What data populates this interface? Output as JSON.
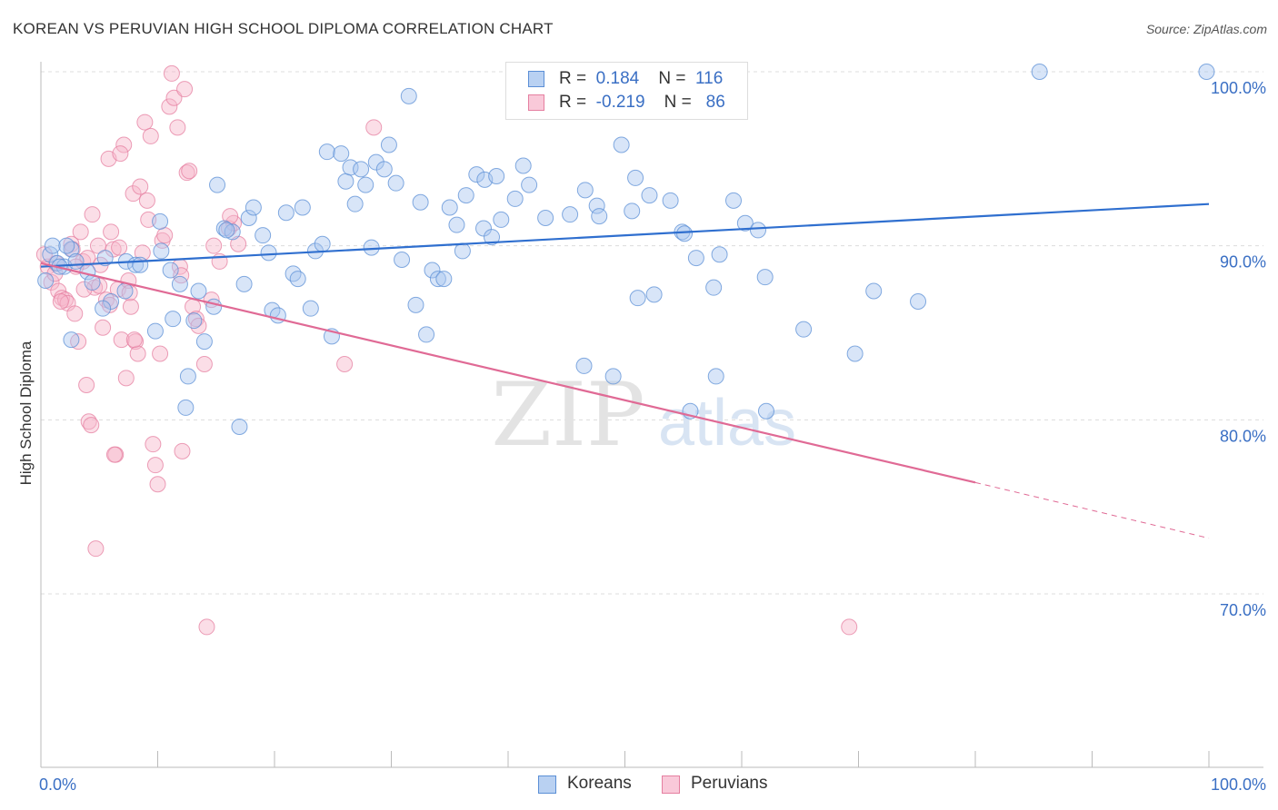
{
  "header": {
    "title": "KOREAN VS PERUVIAN HIGH SCHOOL DIPLOMA CORRELATION CHART",
    "source": "Source: ZipAtlas.com"
  },
  "legend": {
    "koreans": {
      "r_label": "R =",
      "r_value": "0.184",
      "n_label": "N =",
      "n_value": "116"
    },
    "peruvians": {
      "r_label": "R =",
      "r_value": "-0.219",
      "n_label": "N =",
      "n_value": "86"
    }
  },
  "bottom_legend": {
    "koreans": "Koreans",
    "peruvians": "Peruvians"
  },
  "watermark": {
    "zip": "ZIP",
    "atlas": "atlas"
  },
  "colors": {
    "korean_fill": "#a9c6ef",
    "korean_stroke": "#5b8fd6",
    "korean_line": "#2f6fcf",
    "peruvian_fill": "#f6b5ca",
    "peruvian_stroke": "#e57fa0",
    "peruvian_line": "#e06a95",
    "tick_label": "#3a6fc4",
    "grid": "#dcdcdc"
  },
  "chart_data": {
    "type": "scatter",
    "title": "KOREAN VS PERUVIAN HIGH SCHOOL DIPLOMA CORRELATION CHART",
    "xlabel": "",
    "ylabel": "High School Diploma",
    "xlim": [
      0,
      100
    ],
    "ylim": [
      60.5,
      101
    ],
    "x_tick_labels": [
      "0.0%",
      "100.0%"
    ],
    "y_ticks": [
      70,
      80,
      90,
      100
    ],
    "y_tick_labels": [
      "70.0%",
      "80.0%",
      "90.0%",
      "100.0%"
    ],
    "grid": true,
    "legend_position": "top-center",
    "series": [
      {
        "name": "Koreans",
        "r": 0.184,
        "n": 116,
        "trend": {
          "x": [
            0,
            100
          ],
          "y": [
            88.8,
            92.4
          ]
        },
        "points": [
          [
            0.8,
            89.5
          ],
          [
            1.0,
            90.0
          ],
          [
            1.4,
            89.0
          ],
          [
            2.0,
            88.8
          ],
          [
            2.6,
            89.8
          ],
          [
            3.0,
            89.1
          ],
          [
            4.0,
            88.5
          ],
          [
            5.5,
            89.3
          ],
          [
            4.4,
            87.9
          ],
          [
            6.0,
            86.8
          ],
          [
            5.3,
            86.4
          ],
          [
            7.2,
            87.4
          ],
          [
            7.3,
            89.1
          ],
          [
            8.1,
            88.9
          ],
          [
            8.5,
            88.9
          ],
          [
            10.3,
            89.7
          ],
          [
            9.8,
            85.1
          ],
          [
            10.2,
            91.4
          ],
          [
            11.1,
            88.6
          ],
          [
            11.3,
            85.8
          ],
          [
            11.9,
            87.8
          ],
          [
            12.6,
            82.5
          ],
          [
            12.4,
            80.7
          ],
          [
            13.1,
            85.7
          ],
          [
            13.5,
            87.4
          ],
          [
            14.0,
            84.5
          ],
          [
            14.8,
            86.5
          ],
          [
            15.1,
            93.5
          ],
          [
            15.7,
            91.0
          ],
          [
            16.4,
            90.8
          ],
          [
            15.9,
            90.9
          ],
          [
            17.0,
            79.6
          ],
          [
            17.4,
            87.8
          ],
          [
            17.8,
            91.6
          ],
          [
            18.2,
            92.2
          ],
          [
            19.0,
            90.6
          ],
          [
            19.5,
            89.6
          ],
          [
            19.8,
            86.3
          ],
          [
            20.3,
            86.0
          ],
          [
            21.0,
            91.9
          ],
          [
            21.6,
            88.4
          ],
          [
            22.0,
            88.1
          ],
          [
            22.4,
            92.2
          ],
          [
            23.1,
            86.4
          ],
          [
            23.5,
            89.7
          ],
          [
            24.1,
            90.1
          ],
          [
            24.5,
            95.4
          ],
          [
            24.9,
            84.8
          ],
          [
            25.7,
            95.3
          ],
          [
            26.1,
            93.7
          ],
          [
            26.5,
            94.5
          ],
          [
            26.9,
            92.4
          ],
          [
            27.4,
            94.4
          ],
          [
            27.8,
            93.5
          ],
          [
            28.3,
            89.9
          ],
          [
            28.7,
            94.8
          ],
          [
            29.4,
            94.4
          ],
          [
            29.8,
            95.8
          ],
          [
            30.4,
            93.6
          ],
          [
            30.9,
            89.2
          ],
          [
            31.5,
            98.6
          ],
          [
            32.1,
            86.6
          ],
          [
            32.5,
            92.5
          ],
          [
            33.0,
            84.9
          ],
          [
            33.5,
            88.6
          ],
          [
            34.0,
            88.1
          ],
          [
            34.5,
            88.1
          ],
          [
            35.0,
            92.2
          ],
          [
            35.6,
            91.2
          ],
          [
            36.1,
            89.7
          ],
          [
            36.4,
            92.9
          ],
          [
            37.3,
            94.1
          ],
          [
            37.9,
            91.0
          ],
          [
            38.0,
            93.8
          ],
          [
            38.6,
            90.5
          ],
          [
            39.0,
            94.0
          ],
          [
            39.4,
            91.5
          ],
          [
            40.6,
            92.7
          ],
          [
            41.3,
            94.6
          ],
          [
            41.8,
            93.5
          ],
          [
            43.2,
            91.6
          ],
          [
            45.3,
            91.8
          ],
          [
            46.5,
            83.1
          ],
          [
            46.6,
            93.2
          ],
          [
            47.6,
            92.3
          ],
          [
            47.8,
            91.7
          ],
          [
            49.0,
            82.5
          ],
          [
            49.7,
            95.8
          ],
          [
            50.6,
            92.0
          ],
          [
            50.9,
            93.9
          ],
          [
            51.1,
            87.0
          ],
          [
            52.1,
            92.9
          ],
          [
            52.5,
            87.2
          ],
          [
            53.9,
            92.6
          ],
          [
            54.9,
            90.8
          ],
          [
            55.1,
            90.7
          ],
          [
            56.1,
            89.3
          ],
          [
            55.6,
            80.5
          ],
          [
            57.6,
            87.6
          ],
          [
            57.8,
            82.5
          ],
          [
            58.1,
            89.5
          ],
          [
            59.3,
            92.6
          ],
          [
            60.3,
            91.3
          ],
          [
            61.4,
            90.9
          ],
          [
            62.0,
            88.2
          ],
          [
            62.1,
            80.5
          ],
          [
            65.3,
            85.2
          ],
          [
            69.7,
            83.8
          ],
          [
            71.3,
            87.4
          ],
          [
            75.1,
            86.8
          ],
          [
            85.5,
            100.0
          ],
          [
            99.8,
            100.0
          ],
          [
            2.6,
            84.6
          ],
          [
            0.4,
            88.0
          ],
          [
            1.6,
            88.8
          ],
          [
            2.2,
            90.0
          ]
        ]
      },
      {
        "name": "Peruvians",
        "r": -0.219,
        "n": 86,
        "trend": {
          "x": [
            0,
            80
          ],
          "y": [
            89.0,
            76.4
          ]
        },
        "trend_dashed": {
          "x": [
            80,
            100
          ],
          "y": [
            76.4,
            73.2
          ]
        },
        "points": [
          [
            0.6,
            88.8
          ],
          [
            0.9,
            87.9
          ],
          [
            1.2,
            88.4
          ],
          [
            1.5,
            87.4
          ],
          [
            1.8,
            87.0
          ],
          [
            2.1,
            86.9
          ],
          [
            2.3,
            86.7
          ],
          [
            2.6,
            90.1
          ],
          [
            2.9,
            86.1
          ],
          [
            3.2,
            84.5
          ],
          [
            3.4,
            90.8
          ],
          [
            3.6,
            89.1
          ],
          [
            3.9,
            82.0
          ],
          [
            4.1,
            79.9
          ],
          [
            4.3,
            79.7
          ],
          [
            4.6,
            87.6
          ],
          [
            4.4,
            91.8
          ],
          [
            4.7,
            72.6
          ],
          [
            4.9,
            90.0
          ],
          [
            5.1,
            88.9
          ],
          [
            5.3,
            85.3
          ],
          [
            5.6,
            86.9
          ],
          [
            5.8,
            95.0
          ],
          [
            6.0,
            90.8
          ],
          [
            6.2,
            89.8
          ],
          [
            6.4,
            78.0
          ],
          [
            6.6,
            87.5
          ],
          [
            6.9,
            84.6
          ],
          [
            7.1,
            95.8
          ],
          [
            7.3,
            82.4
          ],
          [
            7.5,
            88.0
          ],
          [
            7.7,
            86.5
          ],
          [
            7.9,
            93.0
          ],
          [
            8.1,
            84.5
          ],
          [
            8.3,
            83.8
          ],
          [
            8.5,
            93.4
          ],
          [
            8.7,
            89.6
          ],
          [
            8.9,
            97.1
          ],
          [
            9.1,
            92.6
          ],
          [
            9.4,
            96.3
          ],
          [
            9.6,
            78.6
          ],
          [
            9.8,
            77.4
          ],
          [
            10.0,
            76.3
          ],
          [
            10.2,
            83.8
          ],
          [
            10.4,
            90.3
          ],
          [
            10.6,
            90.6
          ],
          [
            11.0,
            98.0
          ],
          [
            11.2,
            99.9
          ],
          [
            11.4,
            98.5
          ],
          [
            11.7,
            96.8
          ],
          [
            11.9,
            88.8
          ],
          [
            12.1,
            78.2
          ],
          [
            12.3,
            99.0
          ],
          [
            12.5,
            94.2
          ],
          [
            12.7,
            94.3
          ],
          [
            13.0,
            86.5
          ],
          [
            13.3,
            85.8
          ],
          [
            13.5,
            85.4
          ],
          [
            14.0,
            83.2
          ],
          [
            14.2,
            68.1
          ],
          [
            14.6,
            86.9
          ],
          [
            14.8,
            90.0
          ],
          [
            15.3,
            89.1
          ],
          [
            16.1,
            91.0
          ],
          [
            16.5,
            91.3
          ],
          [
            16.9,
            90.1
          ],
          [
            26.0,
            83.2
          ],
          [
            28.5,
            96.8
          ],
          [
            69.2,
            68.1
          ],
          [
            6.8,
            95.3
          ],
          [
            3.7,
            87.5
          ],
          [
            1.3,
            89.0
          ],
          [
            2.7,
            89.8
          ],
          [
            4.0,
            89.3
          ],
          [
            5.9,
            86.6
          ],
          [
            7.6,
            87.3
          ],
          [
            8.0,
            84.6
          ],
          [
            0.3,
            89.5
          ],
          [
            1.7,
            86.8
          ],
          [
            3.0,
            88.8
          ],
          [
            6.3,
            78.0
          ],
          [
            5.0,
            87.7
          ],
          [
            9.2,
            91.5
          ],
          [
            12.0,
            88.3
          ],
          [
            16.2,
            91.7
          ],
          [
            6.7,
            89.9
          ]
        ]
      }
    ]
  }
}
